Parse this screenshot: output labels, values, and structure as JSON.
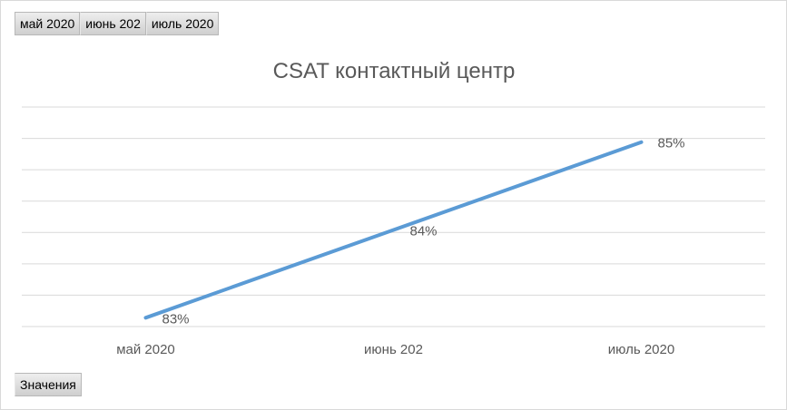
{
  "filters": [
    {
      "label": "май 2020"
    },
    {
      "label": "июнь 202"
    },
    {
      "label": "июль 2020"
    }
  ],
  "values_button": {
    "label": "Значения"
  },
  "colors": {
    "line": "#5b9bd5",
    "grid": "#d9d9d9",
    "text": "#595959"
  },
  "chart_data": {
    "type": "line",
    "title": "CSAT контактный центр",
    "categories": [
      "май 2020",
      "июнь 202",
      "июль 2020"
    ],
    "series": [
      {
        "values": [
          83,
          84,
          85
        ],
        "labels": [
          "83%",
          "84%",
          "85%"
        ]
      }
    ],
    "ylim": [
      82.9,
      85.4
    ],
    "grid": true,
    "legend": "none"
  }
}
